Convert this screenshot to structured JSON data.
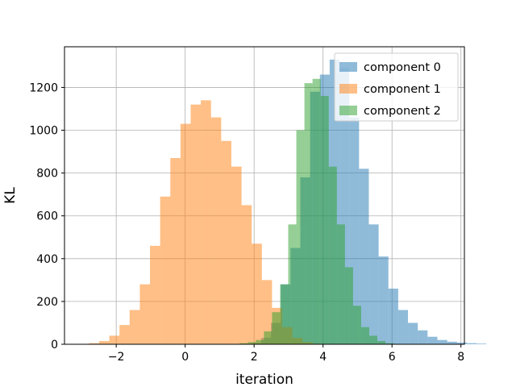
{
  "chart_data": {
    "type": "bar",
    "histogram": true,
    "xlabel": "iteration",
    "ylabel": "KL",
    "xlim": [
      -3.5,
      8.1
    ],
    "ylim": [
      0,
      1390
    ],
    "xticks": [
      -2,
      0,
      2,
      4,
      6,
      8
    ],
    "yticks": [
      0,
      200,
      400,
      600,
      800,
      1000,
      1200
    ],
    "xtick_labels": [
      "−2",
      "0",
      "2",
      "4",
      "6",
      "8"
    ],
    "ytick_labels": [
      "0",
      "200",
      "400",
      "600",
      "800",
      "1000",
      "1200"
    ],
    "grid": true,
    "legend_position": "top-right",
    "series": [
      {
        "name": "component 0",
        "color": "#1f77b4",
        "opacity": 0.5,
        "bin_start": 1.92,
        "bin_width": 0.284,
        "values": [
          5,
          30,
          100,
          280,
          450,
          780,
          1180,
          1260,
          1330,
          1290,
          1060,
          820,
          560,
          410,
          260,
          160,
          100,
          65,
          35,
          20,
          12,
          8,
          5,
          3
        ]
      },
      {
        "name": "component 1",
        "color": "#ff7f0e",
        "opacity": 0.5,
        "bin_start": -2.79,
        "bin_width": 0.295,
        "values": [
          5,
          15,
          40,
          90,
          160,
          280,
          460,
          690,
          870,
          1030,
          1120,
          1140,
          1060,
          950,
          830,
          650,
          470,
          300,
          170,
          80,
          30,
          10,
          3
        ]
      },
      {
        "name": "component 2",
        "color": "#2ca02c",
        "opacity": 0.5,
        "bin_start": 1.58,
        "bin_width": 0.235,
        "values": [
          5,
          10,
          20,
          60,
          150,
          280,
          560,
          1000,
          1220,
          1240,
          1160,
          830,
          560,
          360,
          180,
          80,
          40,
          15,
          5,
          2
        ]
      }
    ]
  }
}
